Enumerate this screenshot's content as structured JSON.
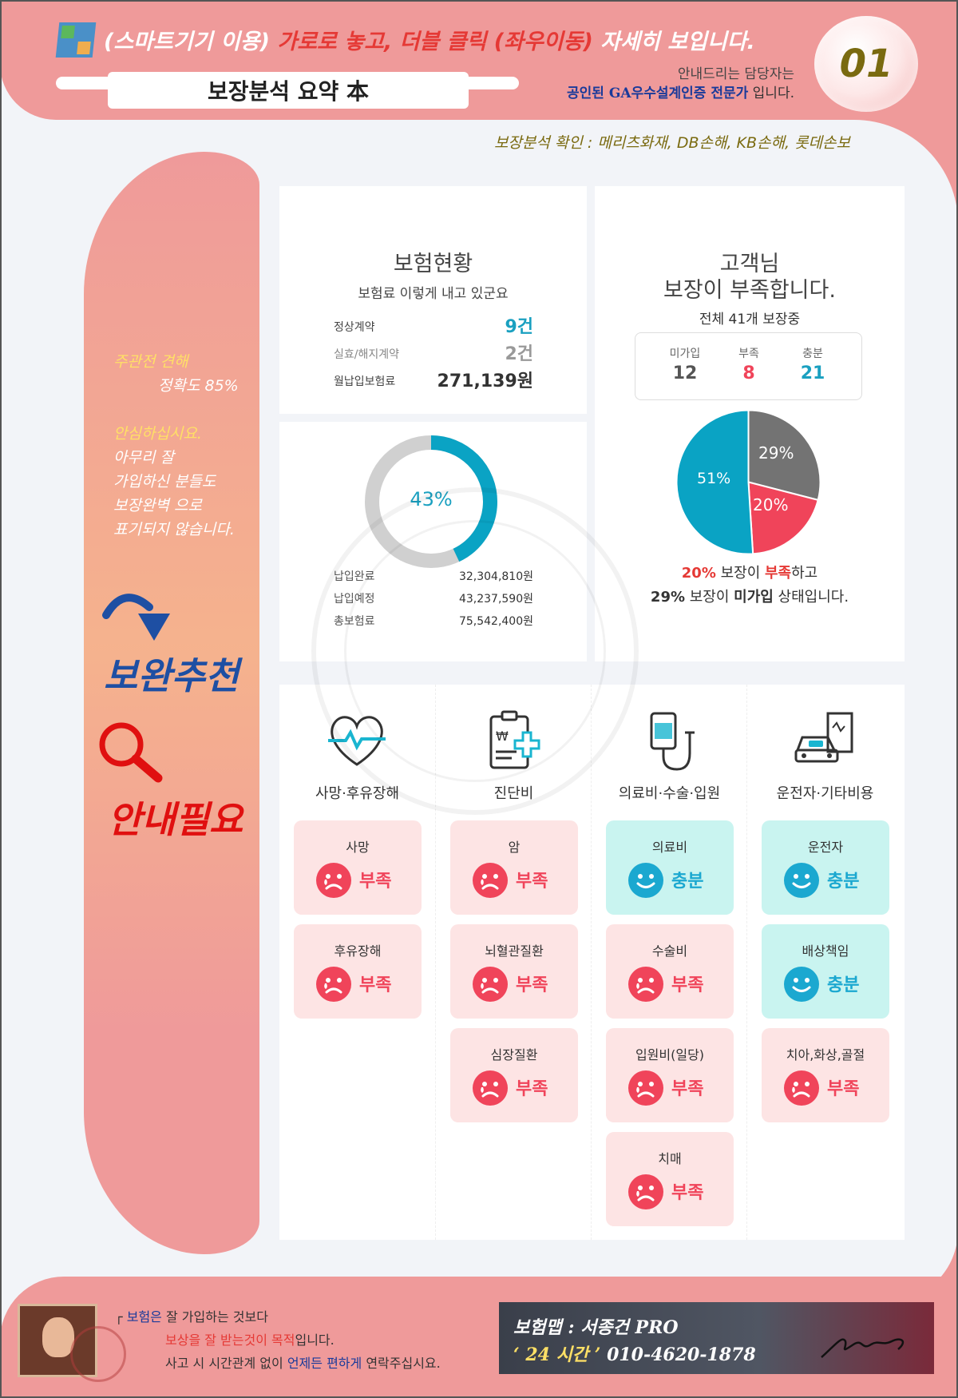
{
  "header": {
    "title_prefix": "(스마트기기 이용)",
    "title_red": "가로로 놓고, 더블 클릭 (좌우이동)",
    "title_suffix": "자세히 보입니다.",
    "summary_title": "보장분석 요약 本",
    "guide_line1": "안내드리는 담당자는",
    "guide_line2_bold": "공인된 GA우수설계인증 전문가",
    "guide_line2_tail": " 입니다.",
    "badge": "01",
    "confirm_line": "보장분석 확인 : 메리츠화재, DB손해, KB손해, 롯데손보"
  },
  "sidebar": {
    "opinion_label": "주관전 견해",
    "accuracy": "정확도 85%",
    "reassure_title": "안심하십시요.",
    "reassure_lines": [
      "아무리 잘",
      "가입하신 분들도",
      "보장완벽 으로",
      "표기되지 않습니다."
    ],
    "recommend": "보완추천",
    "need_guide": "안내필요"
  },
  "status_card": {
    "title": "보험현황",
    "subtitle": "보험료 이렇게 내고 있군요",
    "rows": [
      {
        "label": "정상계약",
        "value": "9건",
        "color": "#1aa0c0"
      },
      {
        "label": "실효/해지계약",
        "value": "2건",
        "color": "#999999"
      },
      {
        "label": "월납입보험료",
        "value": "271,139원",
        "color": "#333333"
      }
    ]
  },
  "donut_card": {
    "percent_label": "43%",
    "percent": 43,
    "rows": [
      {
        "label": "납입완료",
        "value": "32,304,810원"
      },
      {
        "label": "납입예정",
        "value": "43,237,590원"
      },
      {
        "label": "총보험료",
        "value": "75,542,400원"
      }
    ]
  },
  "customer_card": {
    "title1": "고객님",
    "title2": "보장이 부족합니다.",
    "subtitle": "전체 41개 보장중",
    "counts": [
      {
        "label": "미가입",
        "value": "12",
        "color": "#555555"
      },
      {
        "label": "부족",
        "value": "8",
        "color": "#f0445a"
      },
      {
        "label": "충분",
        "value": "21",
        "color": "#1aa0c0"
      }
    ],
    "note1_a": "20%",
    "note1_b": " 보장이 ",
    "note1_c": "부족",
    "note1_d": "하고",
    "note2_a": "29%",
    "note2_b": " 보장이 ",
    "note2_c": "미가입",
    "note2_d": " 상태입니다."
  },
  "chart_data": {
    "type": "pie",
    "slices": [
      {
        "label": "29%",
        "value": 29,
        "color": "#737373"
      },
      {
        "label": "20%",
        "value": 20,
        "color": "#f0445a"
      },
      {
        "label": "51%",
        "value": 51,
        "color": "#0aa3c4"
      }
    ]
  },
  "coverage": {
    "categories": [
      {
        "label": "사망·후유장해",
        "icon": "heart-pulse-icon",
        "items": [
          {
            "name": "사망",
            "status": "부족",
            "kind": "bad"
          },
          {
            "name": "후유장해",
            "status": "부족",
            "kind": "bad"
          }
        ]
      },
      {
        "label": "진단비",
        "icon": "diagnosis-icon",
        "items": [
          {
            "name": "암",
            "status": "부족",
            "kind": "bad"
          },
          {
            "name": "뇌혈관질환",
            "status": "부족",
            "kind": "bad"
          },
          {
            "name": "심장질환",
            "status": "부족",
            "kind": "bad"
          }
        ]
      },
      {
        "label": "의료비·수술·입원",
        "icon": "iv-drip-icon",
        "items": [
          {
            "name": "의료비",
            "status": "충분",
            "kind": "good"
          },
          {
            "name": "수술비",
            "status": "부족",
            "kind": "bad"
          },
          {
            "name": "입원비(일당)",
            "status": "부족",
            "kind": "bad"
          },
          {
            "name": "치매",
            "status": "부족",
            "kind": "bad"
          }
        ]
      },
      {
        "label": "운전자·기타비용",
        "icon": "car-document-icon",
        "items": [
          {
            "name": "운전자",
            "status": "충분",
            "kind": "good"
          },
          {
            "name": "배상책임",
            "status": "충분",
            "kind": "good"
          },
          {
            "name": "치아,화상,골절",
            "status": "부족",
            "kind": "bad"
          }
        ]
      }
    ]
  },
  "footer": {
    "line1_a": "보험은",
    "line1_b": " 잘 가입하는 것보다",
    "line2_a": "보상을 잘 받는것이 목적",
    "line2_b": "입니다.",
    "line3_a": "사고 시 시간관계 없이 ",
    "line3_b": "언제든 편하게",
    "line3_c": " 연락주십시요.",
    "contact_name": "보험맵 : 서종건 PRO",
    "contact_hours": "‘ 24 시간 ’",
    "contact_phone": " 010-4620-1878"
  }
}
